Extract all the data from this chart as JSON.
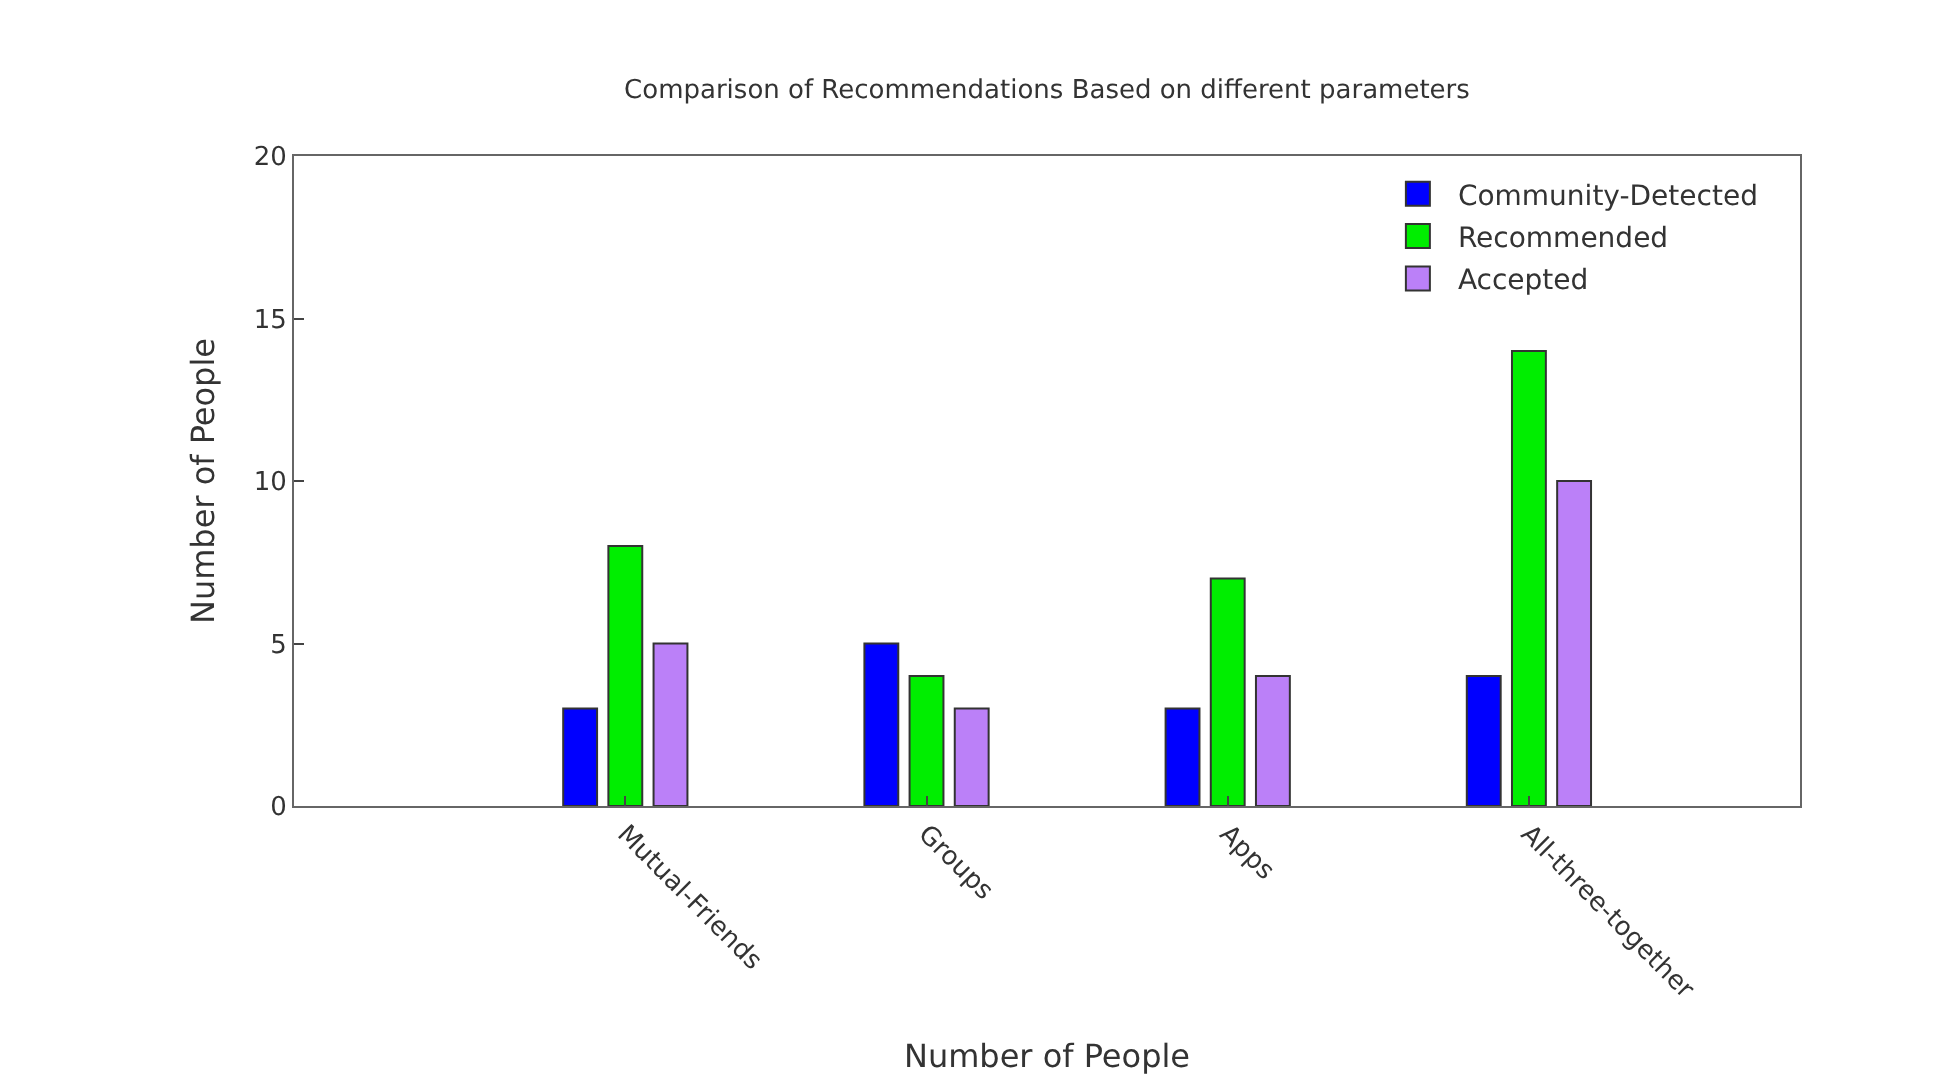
{
  "chart_data": {
    "type": "bar",
    "title": "Comparison of Recommendations Based on different parameters",
    "xlabel": "Number of People",
    "ylabel": "Number of People",
    "categories": [
      "Mutual-Friends",
      "Groups",
      "Apps",
      "All-three-together"
    ],
    "series": [
      {
        "name": "Community-Detected",
        "color": "#0000ff",
        "values": [
          3,
          5,
          3,
          4
        ]
      },
      {
        "name": "Recommended",
        "color": "#00ee00",
        "values": [
          8,
          4,
          7,
          14
        ]
      },
      {
        "name": "Accepted",
        "color": "#bb80f8",
        "values": [
          5,
          3,
          4,
          10
        ]
      }
    ],
    "ylim": [
      0,
      20
    ],
    "yticks": [
      0,
      5,
      10,
      15,
      20
    ],
    "legend": "top right"
  }
}
